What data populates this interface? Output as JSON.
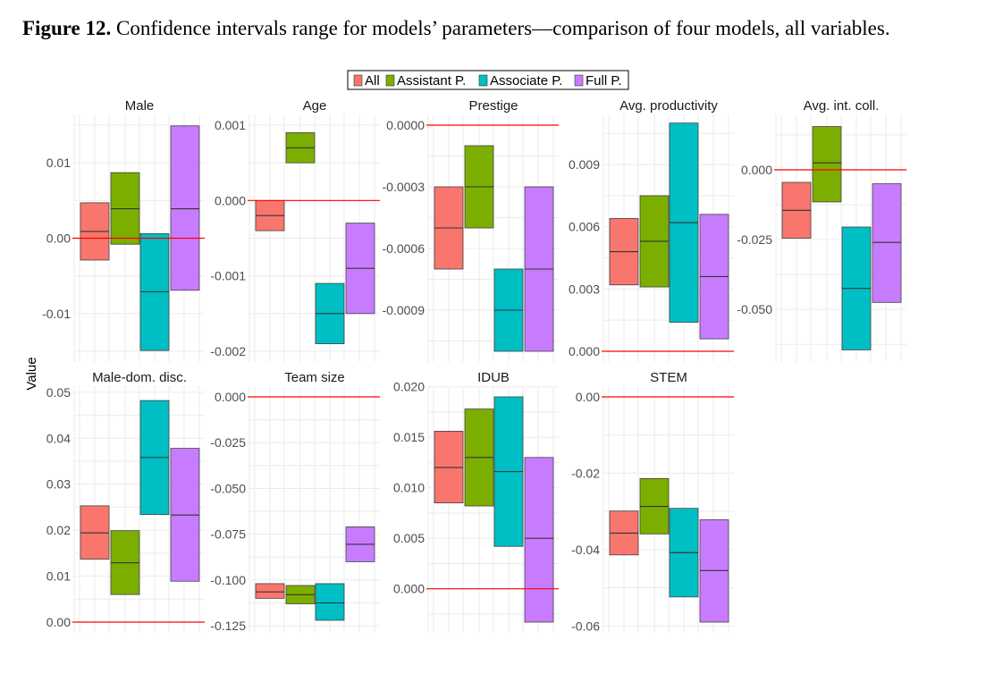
{
  "caption": {
    "label": "Figure 12.",
    "text": "Confidence intervals range for models’ parameters—comparison of four models, all variables."
  },
  "chart_data": {
    "type": "box",
    "ylabel": "Value",
    "legend_position": "top",
    "series": [
      {
        "name": "All",
        "color": "#F8766D"
      },
      {
        "name": "Assistant P.",
        "color": "#7CAE00"
      },
      {
        "name": "Associate P.",
        "color": "#00BFC4"
      },
      {
        "name": "Full P.",
        "color": "#C77CFF"
      }
    ],
    "reference_line": {
      "value": 0,
      "color": "#FF0000"
    },
    "panels": [
      {
        "title": "Male",
        "ylim": [
          -0.015,
          0.015
        ],
        "ticks": [
          {
            "v": 0.01,
            "label": "0.01"
          },
          {
            "v": 0,
            "label": "0.00"
          },
          {
            "v": -0.01,
            "label": "-0.01"
          }
        ],
        "boxes": [
          {
            "low": -0.0029,
            "mid": 0.0009,
            "high": 0.0047
          },
          {
            "low": -0.0008,
            "mid": 0.0039,
            "high": 0.0087
          },
          {
            "low": -0.0149,
            "mid": -0.0071,
            "high": 0.0006
          },
          {
            "low": -0.0069,
            "mid": 0.0039,
            "high": 0.0149
          }
        ]
      },
      {
        "title": "Age",
        "ylim": [
          -0.002,
          0.001
        ],
        "ticks": [
          {
            "v": 0.001,
            "label": "0.001"
          },
          {
            "v": 0,
            "label": "0.000"
          },
          {
            "v": -0.001,
            "label": "-0.001"
          },
          {
            "v": -0.002,
            "label": "-0.002"
          }
        ],
        "boxes": [
          {
            "low": -0.0004,
            "mid": -0.0002,
            "high": 0.0
          },
          {
            "low": 0.0005,
            "mid": 0.0007,
            "high": 0.0009
          },
          {
            "low": -0.0019,
            "mid": -0.0015,
            "high": -0.0011
          },
          {
            "low": -0.0015,
            "mid": -0.0009,
            "high": -0.0003
          }
        ]
      },
      {
        "title": "Prestige",
        "ylim": [
          -0.0011,
          0.0
        ],
        "ticks": [
          {
            "v": 0.0,
            "label": "0.0000"
          },
          {
            "v": -0.0003,
            "label": "-0.0003"
          },
          {
            "v": -0.0006,
            "label": "-0.0006"
          },
          {
            "v": -0.0009,
            "label": "-0.0009"
          }
        ],
        "boxes": [
          {
            "low": -0.0007,
            "mid": -0.0005,
            "high": -0.0003
          },
          {
            "low": -0.0005,
            "mid": -0.0003,
            "high": -0.0001
          },
          {
            "low": -0.0011,
            "mid": -0.0009,
            "high": -0.0007
          },
          {
            "low": -0.0011,
            "mid": -0.0007,
            "high": -0.0003
          }
        ]
      },
      {
        "title": "Avg. productivity",
        "ylim": [
          0.0,
          0.0109
        ],
        "ticks": [
          {
            "v": 0.009,
            "label": "0.009"
          },
          {
            "v": 0.006,
            "label": "0.006"
          },
          {
            "v": 0.003,
            "label": "0.003"
          },
          {
            "v": 0.0,
            "label": "0.000"
          }
        ],
        "boxes": [
          {
            "low": 0.0032,
            "mid": 0.0048,
            "high": 0.0064
          },
          {
            "low": 0.0031,
            "mid": 0.0053,
            "high": 0.0075
          },
          {
            "low": 0.0014,
            "mid": 0.0062,
            "high": 0.011
          },
          {
            "low": 0.0006,
            "mid": 0.0036,
            "high": 0.0066
          }
        ]
      },
      {
        "title": "Avg. int. coll.",
        "ylim": [
          -0.065,
          0.016
        ],
        "ticks": [
          {
            "v": 0.0,
            "label": "0.000"
          },
          {
            "v": -0.025,
            "label": "-0.025"
          },
          {
            "v": -0.05,
            "label": "-0.050"
          }
        ],
        "boxes": [
          {
            "low": -0.0245,
            "mid": -0.0145,
            "high": -0.0045
          },
          {
            "low": -0.0115,
            "mid": 0.0025,
            "high": 0.0155
          },
          {
            "low": -0.0645,
            "mid": -0.0425,
            "high": -0.0205
          },
          {
            "low": -0.0475,
            "mid": -0.026,
            "high": -0.005
          }
        ]
      },
      {
        "title": "Male-dom. disc.",
        "ylim": [
          0.0,
          0.049
        ],
        "ticks": [
          {
            "v": 0.05,
            "label": "0.05"
          },
          {
            "v": 0.04,
            "label": "0.04"
          },
          {
            "v": 0.03,
            "label": "0.03"
          },
          {
            "v": 0.02,
            "label": "0.02"
          },
          {
            "v": 0.01,
            "label": "0.01"
          },
          {
            "v": 0.0,
            "label": "0.00"
          }
        ],
        "boxes": [
          {
            "low": 0.0137,
            "mid": 0.0194,
            "high": 0.0253
          },
          {
            "low": 0.006,
            "mid": 0.0129,
            "high": 0.0199
          },
          {
            "low": 0.0234,
            "mid": 0.0358,
            "high": 0.0482
          },
          {
            "low": 0.0089,
            "mid": 0.0233,
            "high": 0.0378
          }
        ]
      },
      {
        "title": "Team size",
        "ylim": [
          -0.123,
          0.0
        ],
        "ticks": [
          {
            "v": 0.0,
            "label": "0.000"
          },
          {
            "v": -0.025,
            "label": "-0.025"
          },
          {
            "v": -0.05,
            "label": "-0.050"
          },
          {
            "v": -0.075,
            "label": "-0.075"
          },
          {
            "v": -0.1,
            "label": "-0.100"
          },
          {
            "v": -0.125,
            "label": "-0.125"
          }
        ],
        "boxes": [
          {
            "low": -0.11,
            "mid": -0.1065,
            "high": -0.102
          },
          {
            "low": -0.113,
            "mid": -0.108,
            "high": -0.103
          },
          {
            "low": -0.122,
            "mid": -0.1125,
            "high": -0.102
          },
          {
            "low": -0.09,
            "mid": -0.0805,
            "high": -0.071
          }
        ]
      },
      {
        "title": "IDUB",
        "ylim": [
          -0.0033,
          0.019
        ],
        "ticks": [
          {
            "v": 0.02,
            "label": "0.020"
          },
          {
            "v": 0.015,
            "label": "0.015"
          },
          {
            "v": 0.01,
            "label": "0.010"
          },
          {
            "v": 0.005,
            "label": "0.005"
          },
          {
            "v": 0.0,
            "label": "0.000"
          }
        ],
        "boxes": [
          {
            "low": 0.0085,
            "mid": 0.012,
            "high": 0.0156
          },
          {
            "low": 0.0082,
            "mid": 0.013,
            "high": 0.0178
          },
          {
            "low": 0.0042,
            "mid": 0.0116,
            "high": 0.019
          },
          {
            "low": -0.0033,
            "mid": 0.005,
            "high": 0.013
          }
        ]
      },
      {
        "title": "STEM",
        "ylim": [
          -0.059,
          0.0
        ],
        "ticks": [
          {
            "v": 0.0,
            "label": "0.00"
          },
          {
            "v": -0.02,
            "label": "-0.02"
          },
          {
            "v": -0.04,
            "label": "-0.04"
          },
          {
            "v": -0.06,
            "label": "-0.06"
          }
        ],
        "boxes": [
          {
            "low": -0.0414,
            "mid": -0.0357,
            "high": -0.0299
          },
          {
            "low": -0.0359,
            "mid": -0.0287,
            "high": -0.0214
          },
          {
            "low": -0.0524,
            "mid": -0.0408,
            "high": -0.0292
          },
          {
            "low": -0.059,
            "mid": -0.0455,
            "high": -0.0322
          }
        ]
      }
    ]
  }
}
